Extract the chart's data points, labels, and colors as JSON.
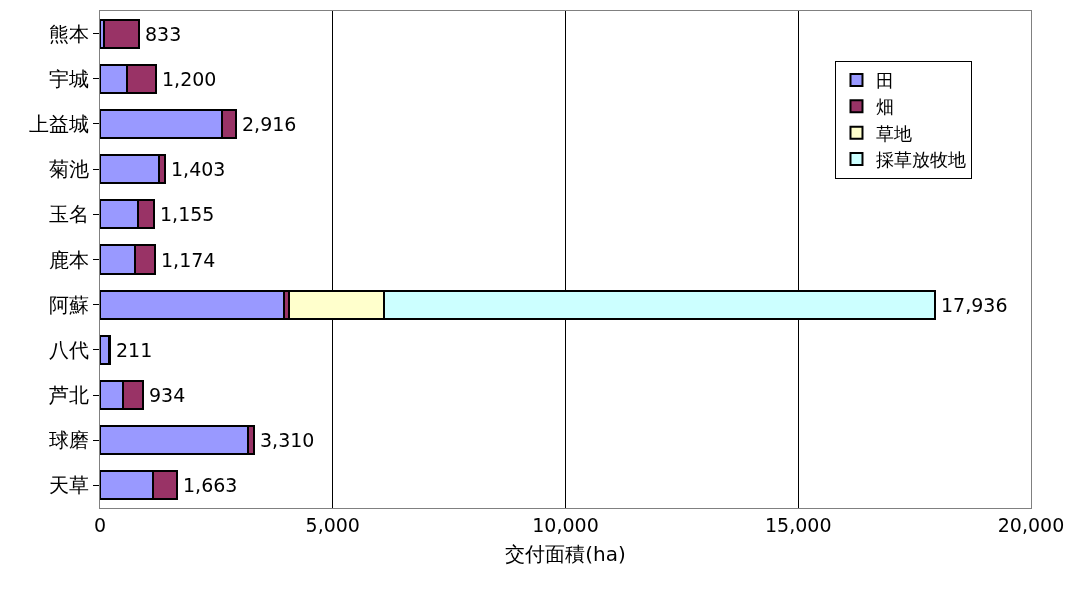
{
  "chart_data": {
    "type": "bar",
    "orientation": "horizontal",
    "stacked": true,
    "xlabel": "交付面積(ha)",
    "categories": [
      "熊本",
      "宇城",
      "上益城",
      "菊池",
      "玉名",
      "鹿本",
      "阿蘇",
      "八代",
      "芦北",
      "球磨",
      "天草"
    ],
    "series": [
      {
        "name": "田",
        "color": "#9999ff",
        "values": [
          90,
          580,
          2610,
          1260,
          810,
          760,
          3950,
          200,
          500,
          3170,
          1140
        ]
      },
      {
        "name": "畑",
        "color": "#993366",
        "values": [
          743,
          620,
          306,
          143,
          345,
          414,
          100,
          11,
          434,
          140,
          523
        ]
      },
      {
        "name": "草地",
        "color": "#ffffcc",
        "values": [
          null,
          null,
          null,
          null,
          null,
          null,
          2050,
          null,
          null,
          null,
          null
        ]
      },
      {
        "name": "採草放牧地",
        "color": "#ccffff",
        "values": [
          null,
          null,
          null,
          null,
          null,
          null,
          11836,
          null,
          null,
          null,
          null
        ]
      }
    ],
    "totals": [
      "833",
      "1,200",
      "2,916",
      "1,403",
      "1,155",
      "1,174",
      "17,936",
      "211",
      "934",
      "3,310",
      "1,663"
    ],
    "xlim": [
      0,
      20000
    ],
    "xticks": [
      0,
      {
        "value": 5000,
        "label": "5,000"
      },
      {
        "value": 10000,
        "label": "10,000"
      },
      {
        "value": 15000,
        "label": "15,000"
      },
      {
        "value": 20000,
        "label": "20,000"
      }
    ],
    "grid": "x",
    "legend": "top right"
  }
}
